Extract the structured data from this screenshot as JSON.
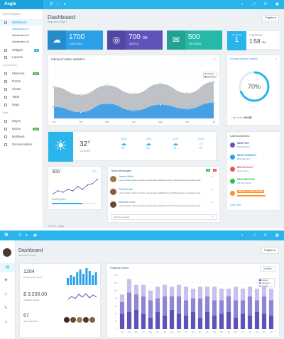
{
  "app": {
    "brand": "Angle"
  },
  "topbar_icons": [
    "menu-icon",
    "expand-icon",
    "user-icon",
    "search-icon",
    "fullscreen-icon",
    "power-icon"
  ],
  "sidebar": {
    "section_main": "Main Navigation",
    "section_components": "Components",
    "section_more": "More",
    "items": [
      {
        "label": "Dashboard",
        "icon": "dashboard-icon"
      },
      {
        "label": "Widgets",
        "icon": "widgets-icon",
        "badge": "30"
      },
      {
        "label": "Layouts",
        "icon": "layouts-icon"
      },
      {
        "label": "Elements",
        "icon": "elements-icon",
        "badge": "new"
      },
      {
        "label": "Forms",
        "icon": "forms-icon"
      },
      {
        "label": "Charts",
        "icon": "charts-icon"
      },
      {
        "label": "Table",
        "icon": "table-icon"
      },
      {
        "label": "Maps",
        "icon": "maps-icon"
      },
      {
        "label": "Pages",
        "icon": "pages-icon"
      },
      {
        "label": "Extras",
        "icon": "extras-icon",
        "badge": "new"
      },
      {
        "label": "Multilevel",
        "icon": "multilevel-icon"
      },
      {
        "label": "Documentation",
        "icon": "documentation-icon"
      }
    ],
    "sub_items": [
      "Dashboard v1",
      "Dashboard v2",
      "Dashboard v3"
    ]
  },
  "header": {
    "title": "Dashboard",
    "subtitle": "Welcome to Angle !",
    "language": "English ▾"
  },
  "stats": [
    {
      "value": "1700",
      "label": "UPLOADS",
      "icon": "cloud-upload-icon",
      "color": "#2b9fe8"
    },
    {
      "value": "700",
      "unit": "GB",
      "label": "QUOTA",
      "icon": "globe-icon",
      "color": "#5d53b8"
    },
    {
      "value": "500",
      "label": "REVIEWS",
      "icon": "chat-icon",
      "color": "#26b9a7"
    }
  ],
  "date_widget": {
    "month": "November",
    "day": "1",
    "weekday": "THURSDAY",
    "time": "1:58",
    "ampm": "PM"
  },
  "visitor_chart": {
    "title": "Inbound visitor statistics",
    "legend": [
      "Uniques",
      "Recurrent"
    ]
  },
  "chart_data": {
    "type": "area",
    "title": "Inbound visitor statistics",
    "x": [
      "Jan",
      "Feb",
      "Mar",
      "Apr",
      "May",
      "Jun",
      "Jul"
    ],
    "series": [
      {
        "name": "Uniques",
        "values": [
          60,
          45,
          63,
          47,
          66,
          48,
          70
        ],
        "color": "#b3b7bd"
      },
      {
        "name": "Recurrent",
        "values": [
          22,
          12,
          28,
          15,
          26,
          18,
          30
        ],
        "color": "#3f9ee8"
      }
    ],
    "ylim": [
      0,
      100
    ],
    "legend": "top-right"
  },
  "progress_card": {
    "title": "Average Monthly Uploads",
    "percent": "70%",
    "value_fraction": 0.7,
    "footer": "Last Month",
    "footer_value": "100 GB"
  },
  "weather": {
    "temp": "32°",
    "condition": "CLOUDY",
    "days": [
      {
        "time": "10:00",
        "temp": "29°"
      },
      {
        "time": "11:00",
        "temp": "28°"
      },
      {
        "time": "12:00",
        "temp": "29°"
      },
      {
        "time": "13:00",
        "temp": "28°"
      }
    ]
  },
  "sparkline": {
    "value": "300",
    "label": "Monthly plans",
    "values": [
      3,
      5,
      4,
      6,
      5,
      8,
      6,
      9,
      10,
      13
    ]
  },
  "messages": {
    "title": "Team messages",
    "badges": [
      "28",
      "2"
    ],
    "items": [
      {
        "name": "Jessie Wells",
        "text": "Lorem ipsum dolor sit amet, consectetur adipiscing elit. Pellentesque commodo ante.",
        "time": "2 m"
      },
      {
        "name": "Rosa Burke",
        "text": "Lorem ipsum dolor sit amet, consectetur adipiscing elit. Pellentesque commodo ante.",
        "time": "1 h"
      },
      {
        "name": "Michelle Lane",
        "text": "Lorem ipsum dolor sit amet, consectetur adipiscing elit. Pellentesque commodo ante.",
        "time": "3 h"
      }
    ],
    "search_placeholder": "Search message"
  },
  "activities": {
    "title": "Latest activities",
    "items": [
      {
        "title": "NEW FILE",
        "sub": "Bootstrap.doc",
        "color": "#5d53b8"
      },
      {
        "title": "NEW COMMENT",
        "sub": "Bootstrap.doc",
        "color": "#2b9fe8"
      },
      {
        "title": "BROADCAST",
        "sub": "Angle theme",
        "color": "#f05050"
      },
      {
        "title": "NEW MEETING",
        "sub": "with Joy Smith",
        "color": "#27c24c"
      },
      {
        "title": "TASKS COMPLETION",
        "sub": "",
        "color": "#ff902b"
      }
    ],
    "more": "Load more"
  },
  "footer": "© 2016 - Angle",
  "dashboard2": {
    "title": "Dashboard",
    "subtitle": "Welcome to Angle !",
    "language": "English ▾",
    "stats": [
      {
        "value": "1204",
        "label": "Commits this month"
      },
      {
        "value": "$ 3,200.00",
        "label": "Available budget"
      },
      {
        "value": "67",
        "label": "Team Members"
      }
    ],
    "projects": {
      "title": "Projects Hours",
      "period": "Monthly",
      "legend": [
        "Coding",
        "Designing",
        "Testing"
      ]
    }
  },
  "chart_data_2": {
    "type": "bar",
    "x": [
      "Jan",
      "Feb",
      "Mar",
      "Apr",
      "May",
      "Jun",
      "Jul",
      "Aug",
      "Sep",
      "Oct",
      "Nov",
      "Dec",
      "Jan",
      "Feb",
      "Mar",
      "Apr",
      "May",
      "Jun",
      "Jul",
      "Aug",
      "Sep",
      "Oct"
    ],
    "series": [
      {
        "name": "Coding",
        "values": [
          40,
          45,
          50,
          40,
          30,
          45,
          35,
          50,
          40,
          35,
          45,
          30,
          45,
          35,
          40,
          45,
          30,
          40,
          35,
          45,
          40,
          35
        ],
        "color": "#5d53b8"
      },
      {
        "name": "Designing",
        "values": [
          30,
          50,
          40,
          45,
          45,
          35,
          50,
          35,
          45,
          40,
          35,
          50,
          40,
          40,
          35,
          40,
          45,
          35,
          50,
          30,
          45,
          40
        ],
        "color": "#8f86d3"
      },
      {
        "name": "Testing",
        "values": [
          20,
          35,
          25,
          30,
          25,
          30,
          30,
          25,
          30,
          35,
          25,
          30,
          25,
          35,
          30,
          20,
          35,
          30,
          25,
          30,
          25,
          30
        ],
        "color": "#c7c1ec"
      }
    ],
    "ylim": [
      0,
      140
    ]
  }
}
